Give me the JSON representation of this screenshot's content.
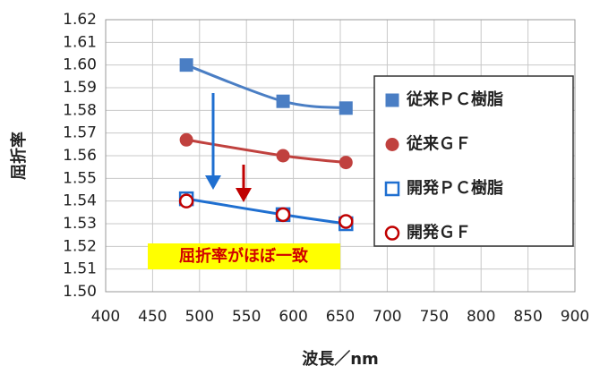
{
  "chart_data": {
    "type": "line",
    "y_label": "屈折率",
    "x_label": "波長／nm",
    "annotation": "屈折率がほぼ一致",
    "xlim": [
      400,
      900
    ],
    "xticks": [
      400,
      450,
      500,
      550,
      600,
      650,
      700,
      750,
      800,
      850,
      900
    ],
    "ylim": [
      1.5,
      1.62
    ],
    "yticks": [
      {
        "value": 1.5,
        "label": "1.50"
      },
      1.51,
      1.52,
      1.53,
      1.54,
      1.55,
      1.56,
      1.57,
      1.58,
      1.59,
      {
        "value": 1.6,
        "label": "1.60"
      },
      1.61,
      1.62
    ],
    "grid": true,
    "x": [
      486,
      589,
      656
    ],
    "series": [
      {
        "name": "従来ＰＣ樹脂",
        "color": "#4a7ec4",
        "marker": "square",
        "filled": true,
        "line": true,
        "values": [
          1.6,
          1.584,
          1.581
        ]
      },
      {
        "name": "従来ＧＦ",
        "color": "#c0413e",
        "marker": "circle",
        "filled": true,
        "line": true,
        "values": [
          1.567,
          1.56,
          1.557
        ]
      },
      {
        "name": "開発ＰＣ樹脂",
        "color": "#1f6fd0",
        "marker": "square",
        "filled": false,
        "line": true,
        "values": [
          1.541,
          1.534,
          1.53
        ]
      },
      {
        "name": "開発ＧＦ",
        "color": "#c00000",
        "marker": "circle",
        "filled": false,
        "line": false,
        "values": [
          1.54,
          1.534,
          1.531
        ]
      }
    ]
  }
}
